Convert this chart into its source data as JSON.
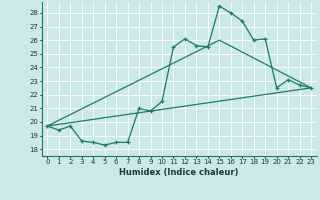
{
  "title": "",
  "xlabel": "Humidex (Indice chaleur)",
  "bg_color": "#cce8e8",
  "line_color": "#1a7a6e",
  "grid_color": "#ffffff",
  "xlim": [
    -0.5,
    23.5
  ],
  "ylim": [
    17.5,
    28.8
  ],
  "yticks": [
    18,
    19,
    20,
    21,
    22,
    23,
    24,
    25,
    26,
    27,
    28
  ],
  "xticks": [
    0,
    1,
    2,
    3,
    4,
    5,
    6,
    7,
    8,
    9,
    10,
    11,
    12,
    13,
    14,
    15,
    16,
    17,
    18,
    19,
    20,
    21,
    22,
    23
  ],
  "line1_x": [
    0,
    1,
    2,
    3,
    4,
    5,
    6,
    7,
    8,
    9,
    10,
    11,
    12,
    13,
    14,
    15,
    16,
    17,
    18,
    19,
    20,
    21,
    22,
    23
  ],
  "line1_y": [
    19.7,
    19.4,
    19.7,
    18.6,
    18.5,
    18.3,
    18.5,
    18.5,
    21.0,
    20.8,
    21.5,
    25.5,
    26.1,
    25.6,
    25.5,
    28.5,
    28.0,
    27.4,
    26.0,
    26.1,
    22.5,
    23.1,
    22.7,
    22.5
  ],
  "line2_x": [
    0,
    23
  ],
  "line2_y": [
    19.7,
    22.5
  ],
  "line3_x": [
    0,
    15,
    23
  ],
  "line3_y": [
    19.7,
    26.0,
    22.5
  ]
}
